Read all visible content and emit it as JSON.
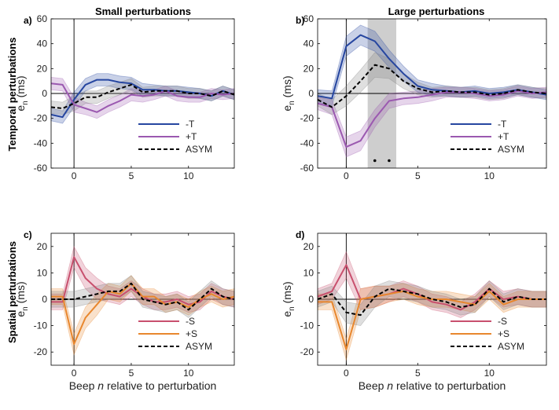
{
  "figure": {
    "row_labels": [
      "Temporal perturbations",
      "Spatial perturbations"
    ],
    "column_titles": [
      "Small perturbations",
      "Large perturbations"
    ],
    "ylabel_main": "e",
    "ylabel_sub": "n",
    "ylabel_unit": "(ms)",
    "xlabel_prefix": "Beep ",
    "xlabel_italic": "n",
    "xlabel_suffix": " relative to perturbation"
  },
  "colors": {
    "minus_T": "#2646a0",
    "plus_T": "#9b59b0",
    "minus_S": "#c8506e",
    "plus_S": "#e8872e",
    "asym": "#000000",
    "asym_band": "#808080",
    "highlight": "#bdbdbd"
  },
  "chart_data": [
    {
      "panel": "a)",
      "type": "line",
      "title": "Small perturbations",
      "xlim": [
        -2,
        14
      ],
      "ylim": [
        -60,
        60
      ],
      "xticks": [
        0,
        5,
        10
      ],
      "yticks": [
        -60,
        -40,
        -20,
        0,
        20,
        40,
        60
      ],
      "x": [
        -2,
        -1,
        0,
        1,
        2,
        3,
        4,
        5,
        6,
        7,
        8,
        9,
        10,
        11,
        12,
        13,
        14
      ],
      "legend": [
        "-T",
        "+T",
        "ASYM"
      ],
      "series": [
        {
          "name": "-T",
          "color_key": "minus_T",
          "values": [
            -17,
            -19,
            -5,
            7,
            11,
            11,
            9,
            8,
            3,
            3,
            2,
            2,
            1,
            0,
            -2,
            2,
            -1
          ],
          "ci": [
            5,
            5,
            6,
            5,
            5,
            5,
            5,
            5,
            5,
            4,
            4,
            4,
            4,
            4,
            4,
            4,
            4
          ]
        },
        {
          "name": "+T",
          "color_key": "plus_T",
          "values": [
            8,
            7,
            -9,
            -12,
            -15,
            -10,
            -6,
            -1,
            -2,
            -1,
            2,
            -2,
            -3,
            -3,
            0,
            -1,
            0
          ],
          "ci": [
            5,
            5,
            6,
            5,
            5,
            5,
            5,
            5,
            5,
            4,
            4,
            4,
            4,
            4,
            4,
            4,
            4
          ]
        },
        {
          "name": "ASYM",
          "color_key": "asym",
          "dashed": true,
          "band": true,
          "values": [
            -11,
            -12,
            -8,
            -3,
            -3,
            1,
            4,
            7,
            1,
            2,
            2,
            2,
            0,
            0,
            -2,
            2,
            -1
          ],
          "ci": [
            5,
            5,
            6,
            5,
            5,
            5,
            5,
            5,
            4,
            4,
            4,
            4,
            4,
            4,
            4,
            4,
            4
          ]
        }
      ]
    },
    {
      "panel": "b)",
      "type": "line",
      "title": "Large perturbations",
      "xlim": [
        -2,
        14
      ],
      "ylim": [
        -60,
        60
      ],
      "xticks": [
        0,
        5,
        10
      ],
      "yticks": [
        -60,
        -40,
        -20,
        0,
        20,
        40,
        60
      ],
      "highlight_x": [
        1.5,
        3.5
      ],
      "significance_markers": [
        {
          "x": 2,
          "y": -54
        },
        {
          "x": 3,
          "y": -54
        }
      ],
      "x": [
        -2,
        -1,
        0,
        1,
        2,
        3,
        4,
        5,
        6,
        7,
        8,
        9,
        10,
        11,
        12,
        13,
        14
      ],
      "legend": [
        "-T",
        "+T",
        "ASYM"
      ],
      "series": [
        {
          "name": "-T",
          "color_key": "minus_T",
          "values": [
            -2,
            -4,
            38,
            47,
            42,
            28,
            16,
            6,
            3,
            2,
            1,
            2,
            0,
            1,
            3,
            1,
            -1
          ],
          "ci": [
            5,
            6,
            8,
            8,
            8,
            7,
            6,
            5,
            5,
            4,
            4,
            4,
            4,
            4,
            4,
            4,
            4
          ]
        },
        {
          "name": "+T",
          "color_key": "plus_T",
          "values": [
            -8,
            -11,
            -43,
            -38,
            -20,
            -6,
            -4,
            -3,
            -1,
            1,
            1,
            0,
            -2,
            -1,
            2,
            0,
            1
          ],
          "ci": [
            5,
            6,
            8,
            8,
            7,
            6,
            5,
            5,
            5,
            4,
            4,
            4,
            4,
            4,
            4,
            4,
            4
          ]
        },
        {
          "name": "ASYM",
          "color_key": "asym",
          "dashed": true,
          "band": true,
          "values": [
            -5,
            -11,
            -2,
            10,
            23,
            20,
            10,
            4,
            1,
            2,
            1,
            1,
            -1,
            0,
            3,
            1,
            0
          ],
          "ci": [
            5,
            6,
            8,
            9,
            10,
            8,
            6,
            5,
            4,
            4,
            4,
            4,
            4,
            4,
            4,
            4,
            4
          ]
        }
      ]
    },
    {
      "panel": "c)",
      "type": "line",
      "xlim": [
        -2,
        14
      ],
      "ylim": [
        -25,
        25
      ],
      "xticks": [
        0,
        5,
        10
      ],
      "yticks": [
        -20,
        -10,
        0,
        10,
        20
      ],
      "x": [
        -2,
        -1,
        0,
        1,
        2,
        3,
        4,
        5,
        6,
        7,
        8,
        9,
        10,
        11,
        12,
        13,
        14
      ],
      "legend": [
        "-S",
        "+S",
        "ASYM"
      ],
      "series": [
        {
          "name": "-S",
          "color_key": "minus_S",
          "values": [
            -1,
            -1,
            16,
            8,
            4,
            2,
            1,
            4,
            1,
            -1,
            -1,
            0,
            -2,
            -1,
            3,
            1,
            0
          ],
          "ci": [
            3,
            3,
            4,
            4,
            4,
            3,
            3,
            3,
            3,
            3,
            3,
            3,
            3,
            3,
            3,
            3,
            3
          ]
        },
        {
          "name": "+S",
          "color_key": "plus_S",
          "values": [
            1,
            1,
            -17,
            -7,
            -2,
            3,
            2,
            6,
            1,
            1,
            -2,
            -1,
            -3,
            0,
            2,
            0,
            1
          ],
          "ci": [
            3,
            3,
            4,
            4,
            4,
            3,
            3,
            3,
            3,
            3,
            3,
            3,
            3,
            3,
            3,
            3,
            3
          ]
        },
        {
          "name": "ASYM",
          "color_key": "asym",
          "dashed": true,
          "band": true,
          "values": [
            0,
            0,
            0,
            1,
            2,
            3,
            3,
            6,
            0,
            -1,
            -2,
            -1,
            -4,
            0,
            4,
            1,
            0
          ],
          "ci": [
            3,
            3,
            3,
            3,
            3,
            3,
            3,
            3,
            3,
            3,
            3,
            3,
            3,
            3,
            3,
            3,
            3
          ]
        }
      ]
    },
    {
      "panel": "d)",
      "type": "line",
      "xlim": [
        -2,
        14
      ],
      "ylim": [
        -25,
        25
      ],
      "xticks": [
        0,
        5,
        10
      ],
      "yticks": [
        -20,
        -10,
        0,
        10,
        20
      ],
      "x": [
        -2,
        -1,
        0,
        1,
        2,
        3,
        4,
        5,
        6,
        7,
        8,
        9,
        10,
        11,
        12,
        13,
        14
      ],
      "legend": [
        "-S",
        "+S",
        "ASYM"
      ],
      "series": [
        {
          "name": "-S",
          "color_key": "minus_S",
          "values": [
            1,
            3,
            13,
            0,
            1,
            2,
            4,
            2,
            -1,
            -2,
            -4,
            -1,
            4,
            0,
            1,
            0,
            0
          ],
          "ci": [
            3,
            3,
            5,
            4,
            4,
            3,
            3,
            3,
            3,
            3,
            3,
            3,
            3,
            3,
            3,
            3,
            3
          ]
        },
        {
          "name": "+S",
          "color_key": "plus_S",
          "values": [
            -1,
            -1,
            -19,
            0,
            1,
            2,
            3,
            1,
            0,
            0,
            -1,
            -2,
            3,
            -2,
            0,
            0,
            0
          ],
          "ci": [
            3,
            3,
            4,
            4,
            4,
            3,
            3,
            3,
            3,
            3,
            3,
            3,
            3,
            3,
            3,
            3,
            3
          ]
        },
        {
          "name": "ASYM",
          "color_key": "asym",
          "dashed": true,
          "band": true,
          "values": [
            0,
            2,
            -5,
            -6,
            1,
            4,
            3,
            2,
            0,
            -1,
            -3,
            -2,
            4,
            -1,
            1,
            0,
            0
          ],
          "ci": [
            3,
            3,
            4,
            4,
            4,
            3,
            3,
            3,
            3,
            3,
            3,
            3,
            3,
            3,
            3,
            3,
            3
          ]
        }
      ]
    }
  ]
}
